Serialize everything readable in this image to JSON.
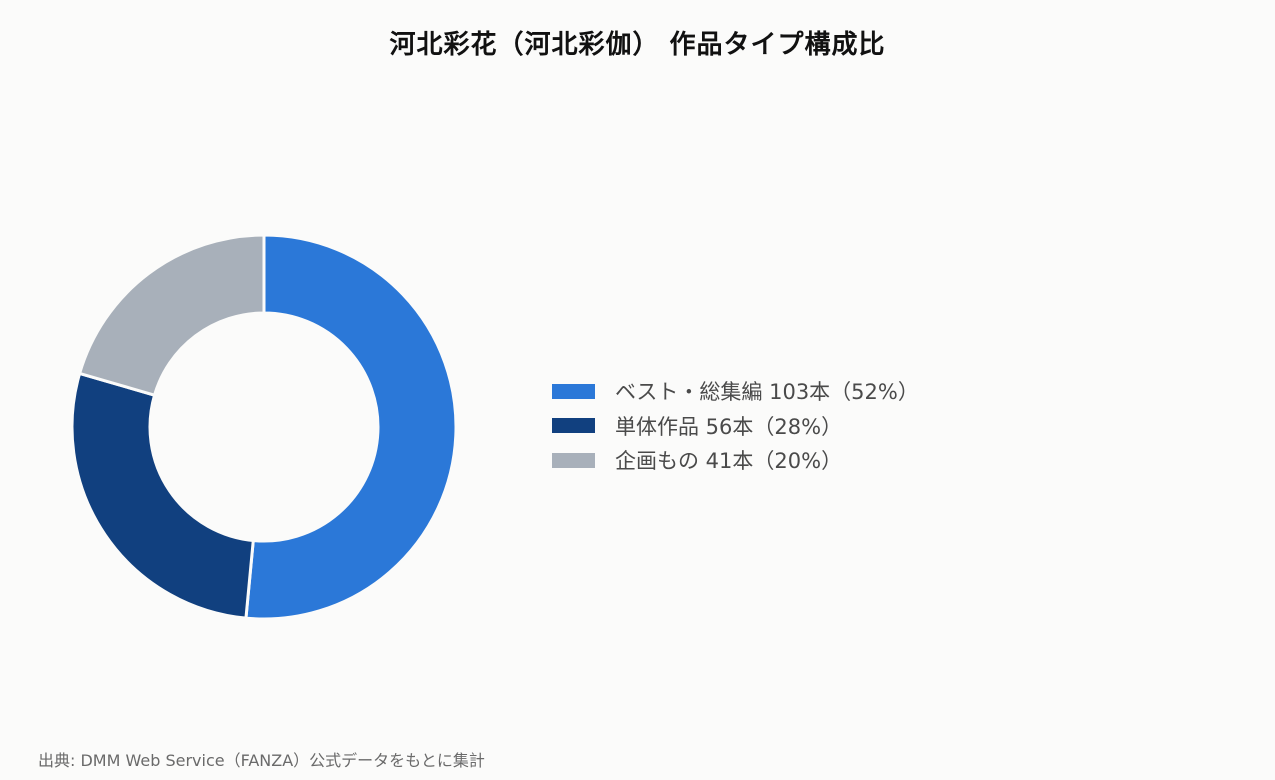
{
  "title": "河北彩花（河北彩伽） 作品タイプ構成比",
  "source": "出典: DMM Web Service（FANZA）公式データをもとに集計",
  "chart_data": {
    "type": "pie",
    "variant": "donut",
    "title": "河北彩花（河北彩伽） 作品タイプ構成比",
    "categories": [
      "ベスト・総集編",
      "単体作品",
      "企画もの"
    ],
    "values": [
      103,
      56,
      41
    ],
    "percentages": [
      52,
      28,
      20
    ],
    "colors": [
      "#2b78d8",
      "#11407f",
      "#a8b0ba"
    ],
    "legend": [
      "ベスト・総集編 103本（52%）",
      "単体作品 56本（28%）",
      "企画もの 41本（20%）"
    ],
    "legend_position": "right",
    "start_angle": "12 o'clock, clockwise"
  }
}
